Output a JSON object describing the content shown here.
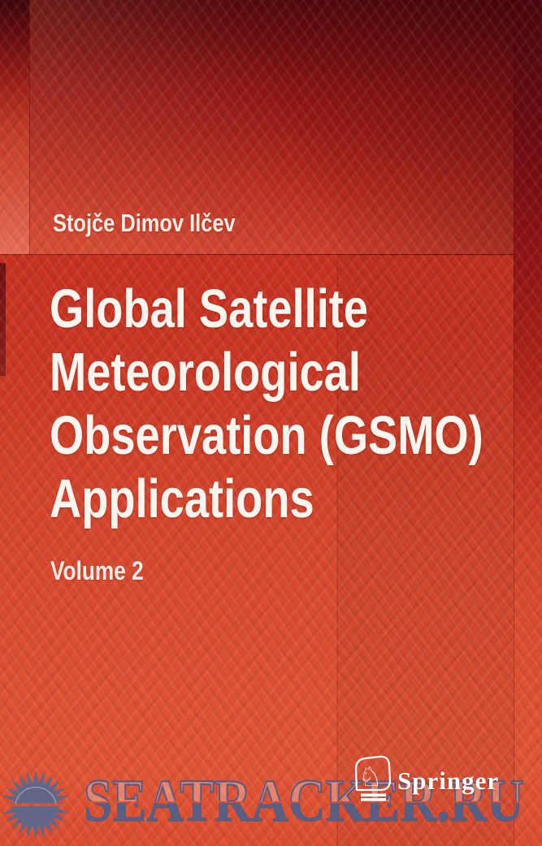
{
  "book_cover": {
    "author": "Stojče Dimov Ilčev",
    "title_lines": [
      "Global Satellite",
      "Meteorological",
      "Observation (GSMO)",
      "Applications"
    ],
    "title_full": "Global Satellite Meteorological Observation (GSMO) Applications",
    "subtitle": "Volume 2",
    "publisher": {
      "name": "Springer",
      "logo_icon": "springer-horse-emblem",
      "horse_glyph": "♘"
    },
    "colors": {
      "cover_red_top": "#8c1115",
      "cover_red_mid": "#cb3522",
      "cover_red_bottom": "#e25434",
      "text_white": "#fbf5f0"
    }
  },
  "watermark": {
    "site": "SEATRACKER.RU",
    "icon": "sun-icon",
    "color_fill": "#50618a",
    "color_outline": "#4d5d87",
    "sun_color": "#59688e"
  }
}
